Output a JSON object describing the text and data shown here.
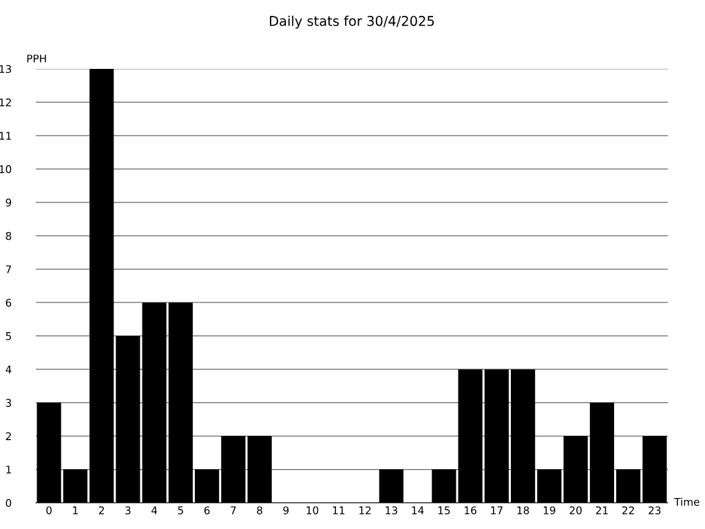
{
  "chart_data": {
    "type": "bar",
    "title": "Daily stats for 30/4/2025",
    "xlabel": "Time",
    "ylabel": "PPH",
    "categories": [
      "0",
      "1",
      "2",
      "3",
      "4",
      "5",
      "6",
      "7",
      "8",
      "9",
      "10",
      "11",
      "12",
      "13",
      "14",
      "15",
      "16",
      "17",
      "18",
      "19",
      "20",
      "21",
      "22",
      "23"
    ],
    "values": [
      3,
      1,
      13,
      5,
      6,
      6,
      1,
      2,
      2,
      0,
      0,
      0,
      0,
      1,
      0,
      1,
      4,
      4,
      4,
      1,
      2,
      3,
      1,
      2
    ],
    "color": "#000000",
    "ylim": [
      0,
      13
    ],
    "yticks": [
      0,
      1,
      2,
      3,
      4,
      5,
      6,
      7,
      8,
      9,
      10,
      11,
      12,
      13
    ],
    "grid": "y"
  }
}
